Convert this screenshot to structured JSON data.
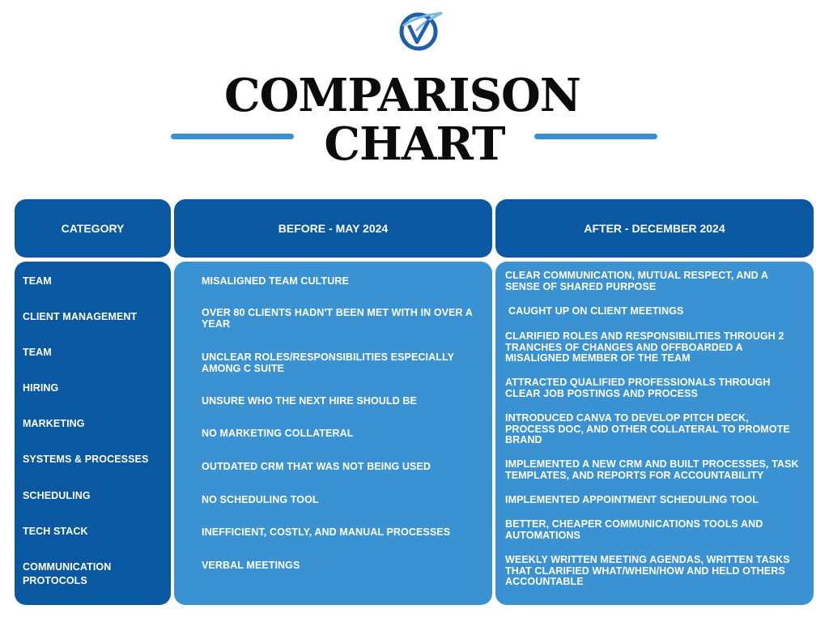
{
  "title": {
    "line1": "COMPARISON",
    "line2": "CHART"
  },
  "colors": {
    "dark_blue": "#0a58a2",
    "light_blue": "#3a92d3",
    "accent_rule": "#3a8fd0"
  },
  "icons": {
    "logo": "v-swoosh-logo-icon"
  },
  "headers": {
    "category": "CATEGORY",
    "before": "BEFORE - MAY 2024",
    "after": "AFTER - DECEMBER 2024"
  },
  "rows": [
    {
      "category": "TEAM",
      "before": "MISALIGNED TEAM CULTURE",
      "after": "CLEAR COMMUNICATION, MUTUAL RESPECT, AND A SENSE OF SHARED PURPOSE"
    },
    {
      "category": "CLIENT MANAGEMENT",
      "before": "OVER 80 CLIENTS HADN'T BEEN MET WITH IN OVER A YEAR",
      "after": "CAUGHT UP ON CLIENT MEETINGS"
    },
    {
      "category": "TEAM",
      "before": "UNCLEAR ROLES/RESPONSIBILITIES ESPECIALLY AMONG C SUITE",
      "after": "CLARIFIED ROLES AND RESPONSIBILITIES THROUGH 2 TRANCHES OF CHANGES AND OFFBOARDED A MISALIGNED MEMBER OF THE TEAM"
    },
    {
      "category": "HIRING",
      "before": "UNSURE WHO THE NEXT HIRE SHOULD BE",
      "after": "ATTRACTED QUALIFIED PROFESSIONALS THROUGH CLEAR JOB POSTINGS AND PROCESS"
    },
    {
      "category": "MARKETING",
      "before": "NO MARKETING COLLATERAL",
      "after": "INTRODUCED CANVA TO DEVELOP PITCH DECK, PROCESS DOC, AND OTHER COLLATERAL TO PROMOTE BRAND"
    },
    {
      "category": "SYSTEMS & PROCESSES",
      "before": "OUTDATED CRM THAT WAS NOT BEING USED",
      "after": "IMPLEMENTED A NEW CRM AND BUILT PROCESSES, TASK TEMPLATES, AND REPORTS FOR ACCOUNTABILITY"
    },
    {
      "category": "SCHEDULING",
      "before": "NO SCHEDULING TOOL",
      "after": "IMPLEMENTED APPOINTMENT SCHEDULING TOOL"
    },
    {
      "category": "TECH STACK",
      "before": "INEFFICIENT, COSTLY, AND MANUAL PROCESSES",
      "after": "BETTER, CHEAPER COMMUNICATIONS TOOLS AND AUTOMATIONS"
    },
    {
      "category": "COMMUNICATION PROTOCOLS",
      "before": "VERBAL MEETINGS",
      "after": "WEEKLY WRITTEN MEETING AGENDAS, WRITTEN TASKS THAT CLARIFIED WHAT/WHEN/HOW AND HELD OTHERS ACCOUNTABLE"
    }
  ]
}
